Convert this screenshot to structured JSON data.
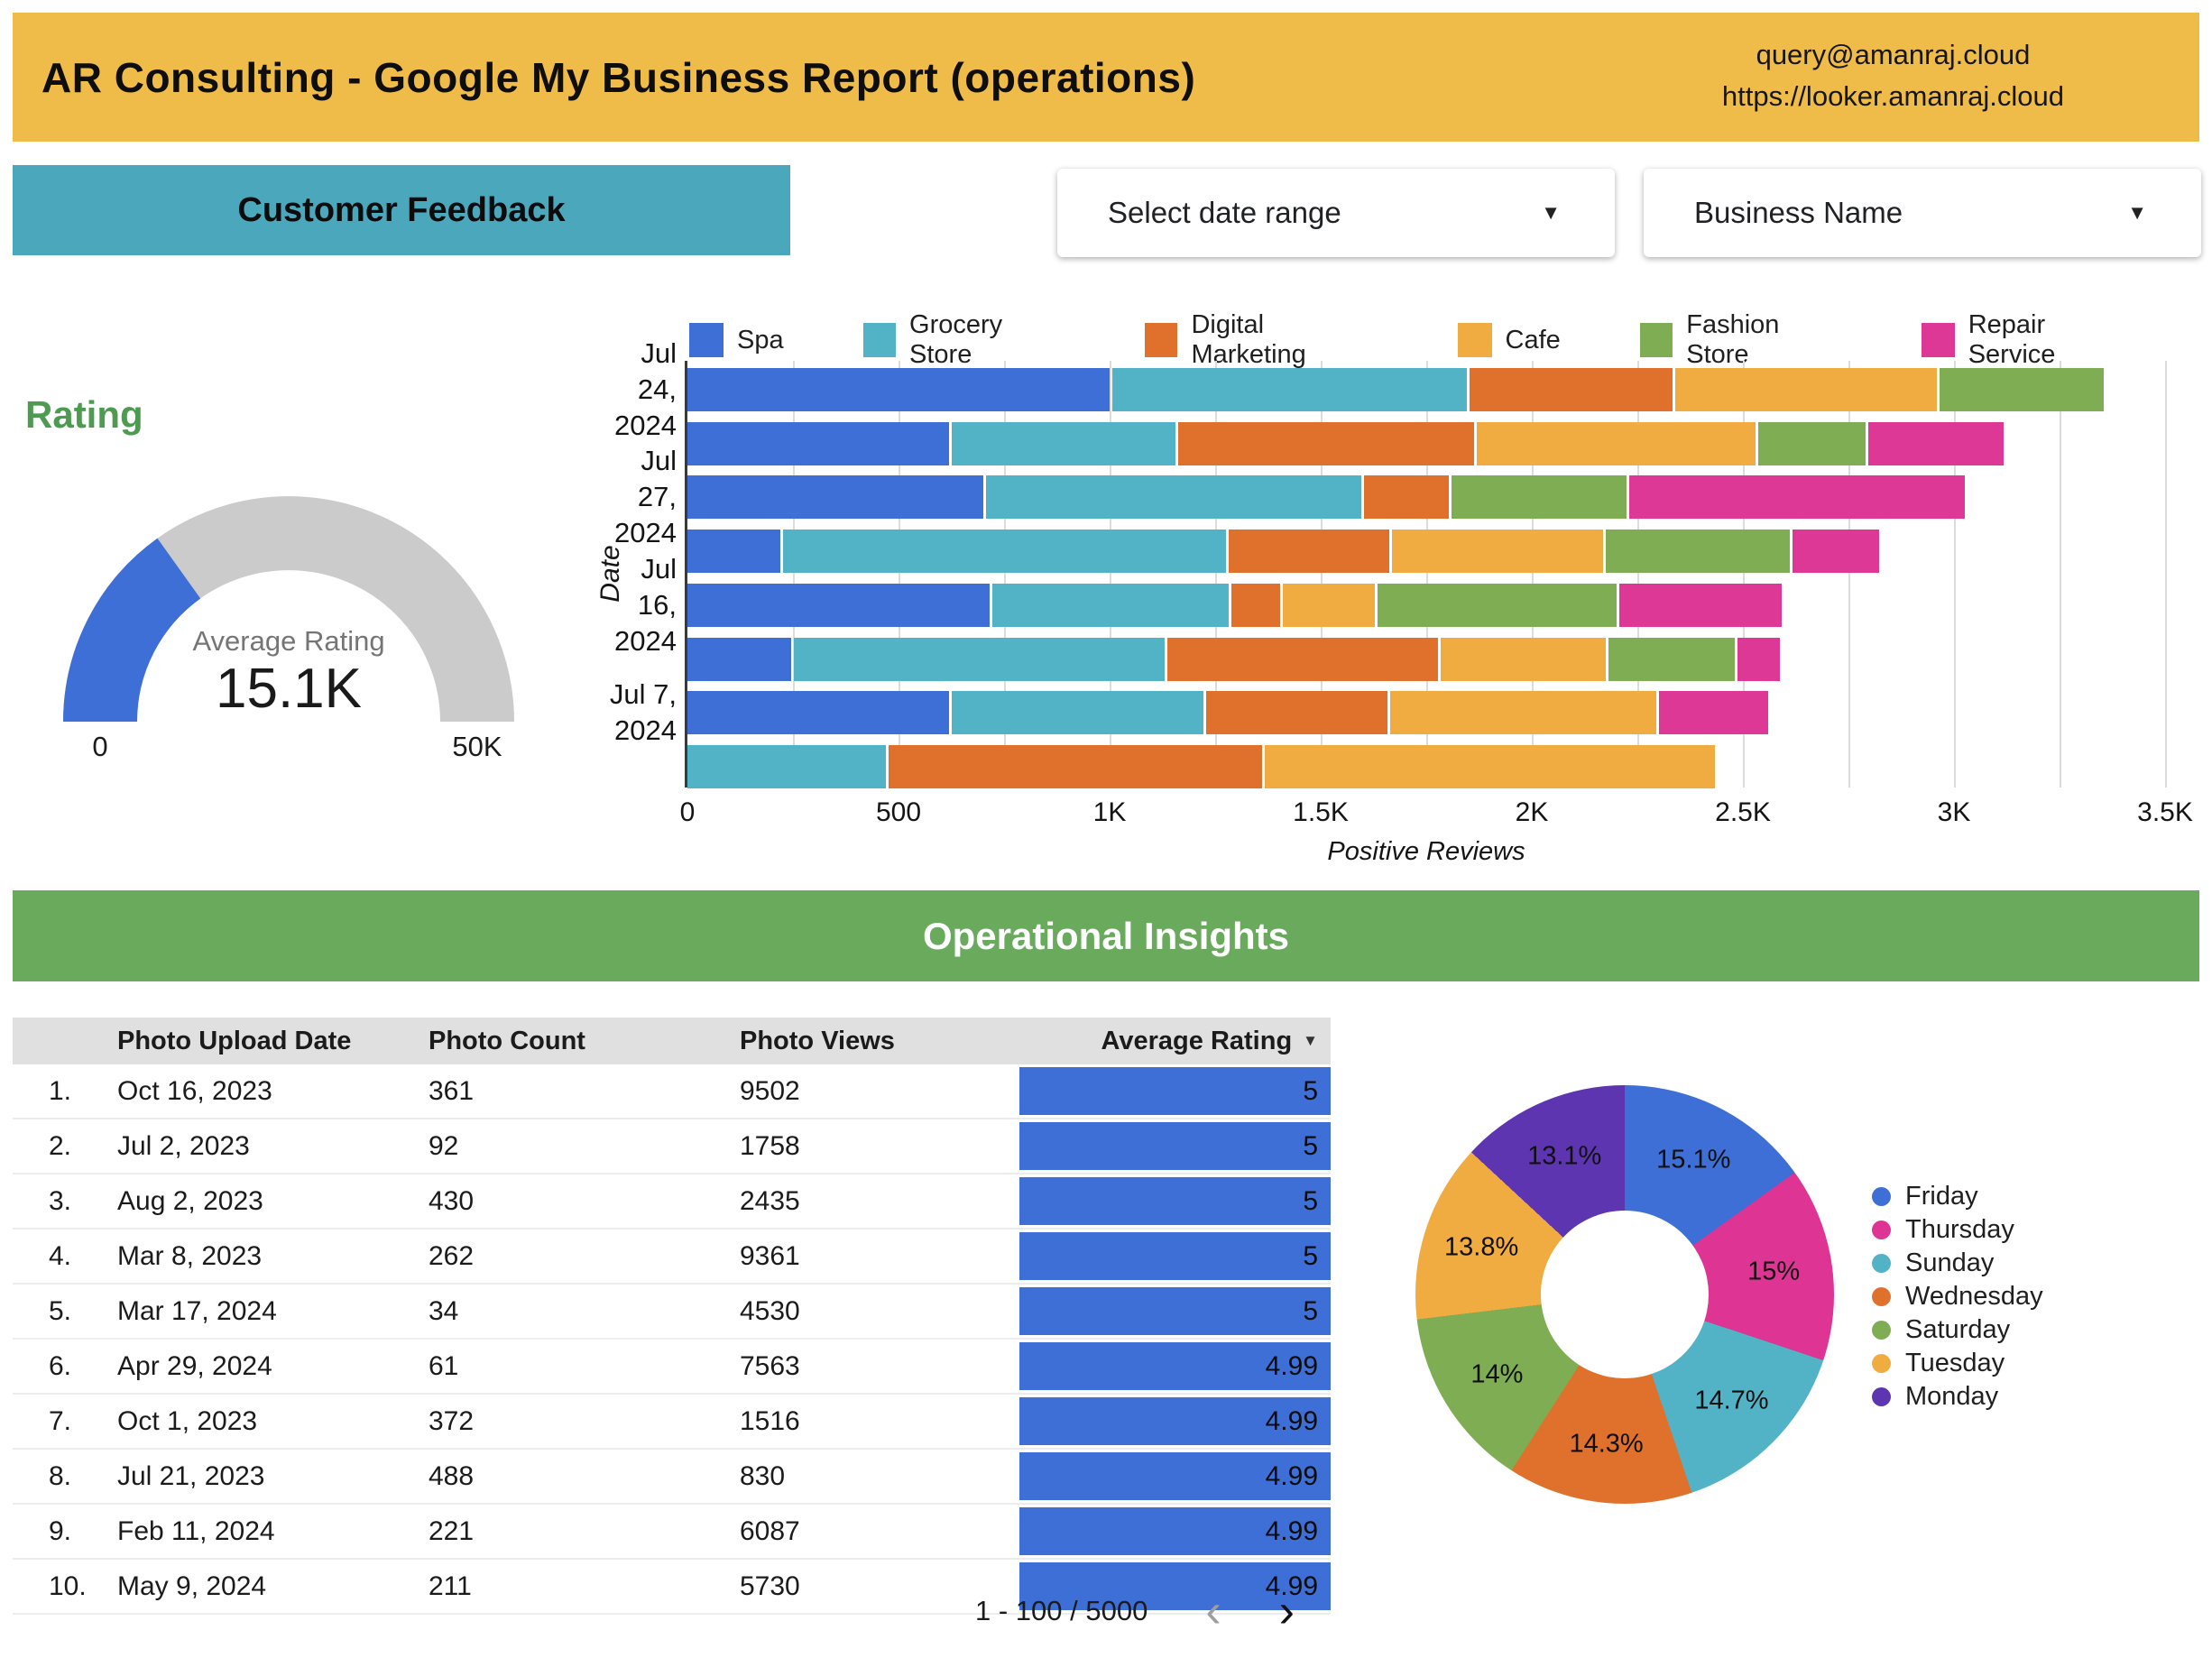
{
  "header": {
    "title": "AR Consulting - Google My Business Report (operations)",
    "contact_email": "query@amanraj.cloud",
    "contact_url": "https://looker.amanraj.cloud",
    "background_color": "#EFBC49"
  },
  "sections": {
    "customer_feedback": "Customer Feedback",
    "operational_insights": "Operational Insights",
    "customer_feedback_color": "#4BA7BC",
    "operational_insights_color": "#6AAA5D"
  },
  "filters": {
    "date_range_label": "Select date range",
    "business_name_label": "Business Name",
    "caret": "▼"
  },
  "chart_data": [
    {
      "type": "gauge",
      "title": "Rating",
      "metric_label": "Average Rating",
      "value_display": "15.1K",
      "value": 15100,
      "min": 0,
      "max": 50000,
      "min_label": "0",
      "max_label": "50K",
      "bar_color": "#3D6FD6",
      "track_color": "#CBCBCB",
      "title_color": "#4D9A51"
    },
    {
      "type": "bar",
      "orientation": "horizontal",
      "stacked": true,
      "xlabel": "Positive Reviews",
      "ylabel": "Date",
      "xlim": [
        0,
        3500
      ],
      "gridline_step": 250,
      "x_ticks": [
        "0",
        "500",
        "1K",
        "1.5K",
        "2K",
        "2.5K",
        "3K",
        "3.5K"
      ],
      "x_tick_values": [
        0,
        500,
        1000,
        1500,
        2000,
        2500,
        3000,
        3500
      ],
      "categories": [
        "Jul 24, 2024",
        "",
        "Jul 27, 2024",
        "",
        "Jul 16, 2024",
        "",
        "Jul 7, 2024",
        ""
      ],
      "category_axis_labels": [
        {
          "row": 0,
          "text": "Jul\n24,\n2024"
        },
        {
          "row": 2,
          "text": "Jul\n27,\n2024"
        },
        {
          "row": 4,
          "text": "Jul\n16,\n2024"
        },
        {
          "row": 6,
          "text": "Jul 7,\n2024"
        }
      ],
      "series": [
        {
          "name": "Spa",
          "color": "#3D6FD6",
          "values": [
            1000,
            620,
            700,
            220,
            715,
            245,
            620,
            0
          ]
        },
        {
          "name": "Grocery Store",
          "color": "#52B2C6",
          "values": [
            840,
            530,
            890,
            1050,
            560,
            880,
            595,
            470
          ]
        },
        {
          "name": "Digital Marketing",
          "color": "#E0712C",
          "values": [
            480,
            700,
            200,
            380,
            115,
            640,
            430,
            885
          ]
        },
        {
          "name": "Cafe",
          "color": "#F0AC41",
          "values": [
            620,
            660,
            0,
            500,
            220,
            390,
            630,
            1065
          ]
        },
        {
          "name": "Fashion Store",
          "color": "#7FAD54",
          "values": [
            390,
            255,
            415,
            435,
            565,
            300,
            0,
            0
          ]
        },
        {
          "name": "Repair Service",
          "color": "#DD3896",
          "values": [
            0,
            320,
            795,
            205,
            385,
            100,
            260,
            0
          ]
        }
      ],
      "legend_position": "top",
      "grid": true
    },
    {
      "type": "pie",
      "donut": true,
      "legend_position": "right",
      "slices": [
        {
          "label": "Friday",
          "pct": 15.1,
          "display": "15.1%",
          "color": "#3D6FD6"
        },
        {
          "label": "Thursday",
          "pct": 15.0,
          "display": "15%",
          "color": "#DE3493"
        },
        {
          "label": "Sunday",
          "pct": 14.7,
          "display": "14.7%",
          "color": "#52B2C6"
        },
        {
          "label": "Wednesday",
          "pct": 14.3,
          "display": "14.3%",
          "color": "#E0712C"
        },
        {
          "label": "Saturday",
          "pct": 14.0,
          "display": "14%",
          "color": "#7FAD54"
        },
        {
          "label": "Tuesday",
          "pct": 13.8,
          "display": "13.8%",
          "color": "#F0AC41"
        },
        {
          "label": "Monday",
          "pct": 13.1,
          "display": "13.1%",
          "color": "#5E35B1"
        }
      ]
    }
  ],
  "table": {
    "columns": {
      "index": "",
      "date": "Photo Upload Date",
      "count": "Photo Count",
      "views": "Photo Views",
      "rating": "Average Rating"
    },
    "sort_indicator": "▼",
    "rating_bar_color": "#3D6FD6",
    "rows": [
      {
        "index": "1.",
        "date": "Oct 16, 2023",
        "count": "361",
        "views": "9502",
        "rating": "5"
      },
      {
        "index": "2.",
        "date": "Jul 2, 2023",
        "count": "92",
        "views": "1758",
        "rating": "5"
      },
      {
        "index": "3.",
        "date": "Aug 2, 2023",
        "count": "430",
        "views": "2435",
        "rating": "5"
      },
      {
        "index": "4.",
        "date": "Mar 8, 2023",
        "count": "262",
        "views": "9361",
        "rating": "5"
      },
      {
        "index": "5.",
        "date": "Mar 17, 2024",
        "count": "34",
        "views": "4530",
        "rating": "5"
      },
      {
        "index": "6.",
        "date": "Apr 29, 2024",
        "count": "61",
        "views": "7563",
        "rating": "4.99"
      },
      {
        "index": "7.",
        "date": "Oct 1, 2023",
        "count": "372",
        "views": "1516",
        "rating": "4.99"
      },
      {
        "index": "8.",
        "date": "Jul 21, 2023",
        "count": "488",
        "views": "830",
        "rating": "4.99"
      },
      {
        "index": "9.",
        "date": "Feb 11, 2024",
        "count": "221",
        "views": "6087",
        "rating": "4.99"
      },
      {
        "index": "10.",
        "date": "May 9, 2024",
        "count": "211",
        "views": "5730",
        "rating": "4.99"
      }
    ]
  },
  "pagination": {
    "range_text": "1 - 100 / 5000",
    "prev_icon": "‹",
    "next_icon": "›"
  }
}
